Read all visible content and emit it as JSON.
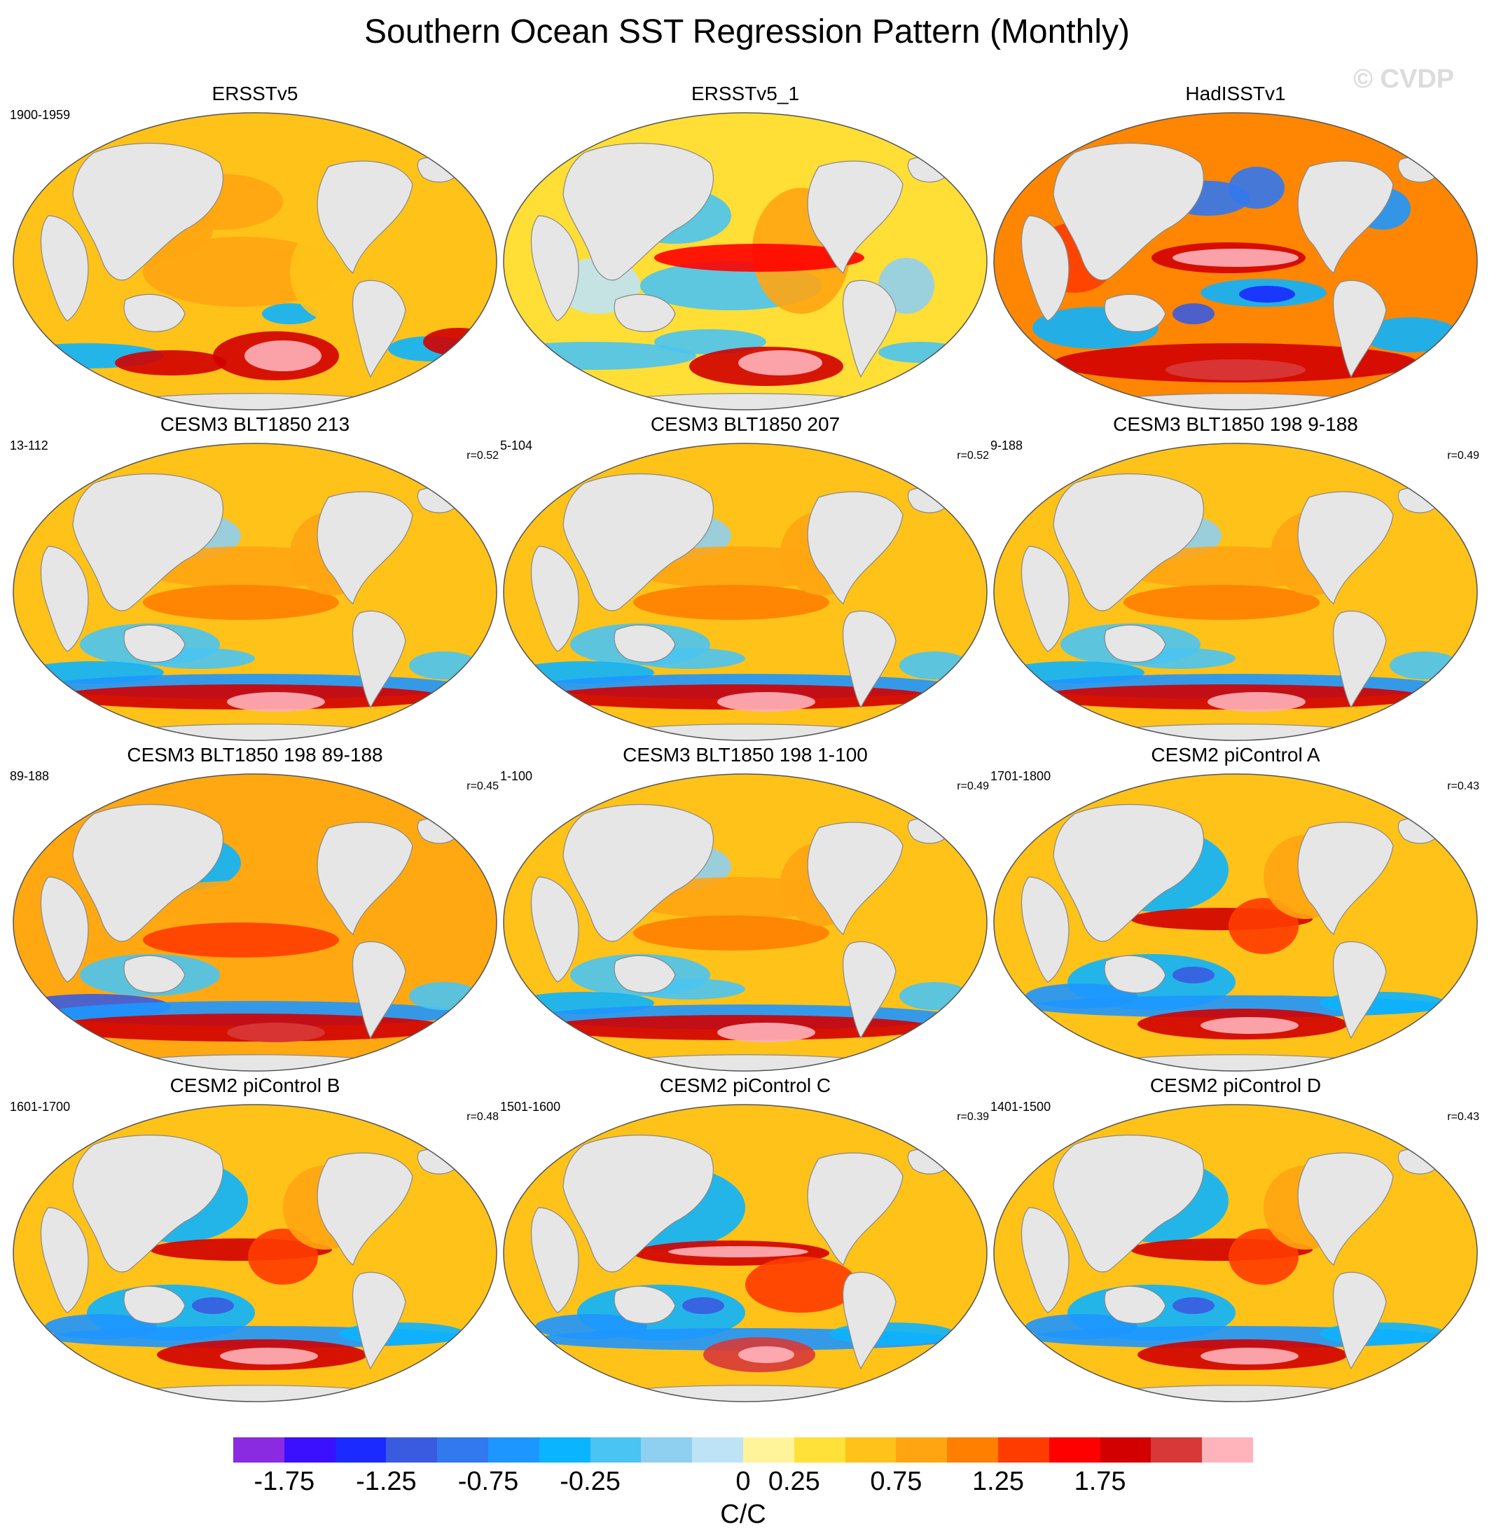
{
  "title": "Southern Ocean SST Regression Pattern (Monthly)",
  "watermark": "© CVDP",
  "units": "C/C",
  "colorbar": {
    "colors": [
      "#8a2be2",
      "#3b0fff",
      "#1b2aff",
      "#3a5be0",
      "#3278ee",
      "#1e96ff",
      "#0bb4ff",
      "#4ac4f2",
      "#8fcff0",
      "#bfe3f6",
      "#fff49a",
      "#ffe13a",
      "#ffc21a",
      "#ffa512",
      "#ff7f00",
      "#ff3c00",
      "#ff0000",
      "#d20000",
      "#d83838",
      "#ffb3bb"
    ],
    "tick_labels": [
      "-1.75",
      "-1.25",
      "-0.75",
      "-0.25",
      "0",
      "0.25",
      "0.75",
      "1.25",
      "1.75"
    ],
    "tick_boundary_index": [
      1,
      3,
      5,
      7,
      10,
      11,
      13,
      15,
      17
    ]
  },
  "panels": [
    {
      "title": "ERSSTv5",
      "period": "1900-1959",
      "corr": "",
      "pattern": "obs1"
    },
    {
      "title": "ERSSTv5_1",
      "period": "",
      "corr": "",
      "pattern": "obs2"
    },
    {
      "title": "HadISSTv1",
      "period": "",
      "corr": "",
      "pattern": "had"
    },
    {
      "title": "CESM3 BLT1850 213",
      "period": "13-112",
      "corr": "r=0.52",
      "pattern": "cesm3"
    },
    {
      "title": "CESM3 BLT1850 207",
      "period": "5-104",
      "corr": "r=0.52",
      "pattern": "cesm3"
    },
    {
      "title": "CESM3 BLT1850 198 9-188",
      "period": "9-188",
      "corr": "r=0.49",
      "pattern": "cesm3"
    },
    {
      "title": "CESM3 BLT1850 198 89-188",
      "period": "89-188",
      "corr": "r=0.45",
      "pattern": "cesm3b"
    },
    {
      "title": "CESM3 BLT1850 198 1-100",
      "period": "1-100",
      "corr": "r=0.49",
      "pattern": "cesm3"
    },
    {
      "title": "CESM2 piControl A",
      "period": "1701-1800",
      "corr": "r=0.43",
      "pattern": "cesm2"
    },
    {
      "title": "CESM2 piControl B",
      "period": "1601-1700",
      "corr": "r=0.48",
      "pattern": "cesm2"
    },
    {
      "title": "CESM2 piControl C",
      "period": "1501-1600",
      "corr": "r=0.39",
      "pattern": "cesm2c"
    },
    {
      "title": "CESM2 piControl D",
      "period": "1401-1500",
      "corr": "r=0.43",
      "pattern": "cesm2"
    }
  ]
}
